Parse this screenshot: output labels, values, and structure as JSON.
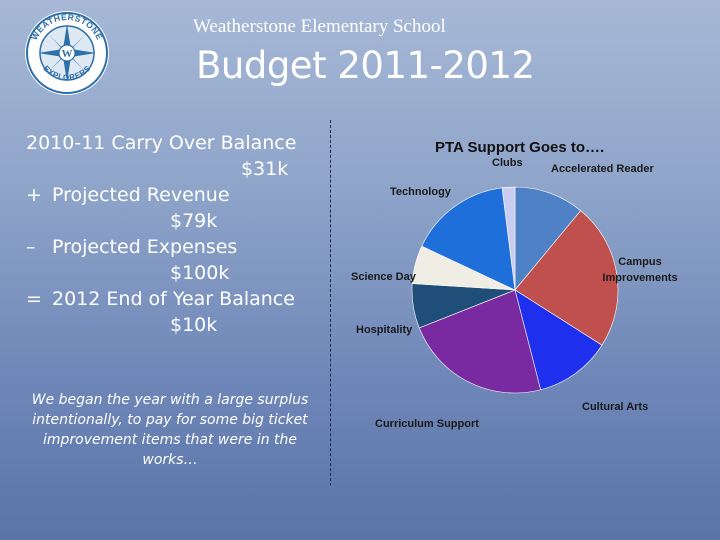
{
  "header": {
    "school_name": "Weatherstone Elementary School",
    "title": "Budget 2011-2012",
    "logo_text_top": "WEATHERSTONE",
    "logo_text_bottom": "EXPLORERS",
    "logo_letter": "W"
  },
  "summary": {
    "lines": [
      {
        "sign": "",
        "label": "2010-11 Carry Over Balance",
        "amount": "$31k"
      },
      {
        "sign": "+",
        "label": "Projected Revenue",
        "amount": "$79k"
      },
      {
        "sign": "–",
        "label": "Projected Expenses",
        "amount": "$100k"
      },
      {
        "sign": "=",
        "label": "2012 End of Year Balance",
        "amount": "$10k"
      }
    ]
  },
  "note": "We began the year with a large surplus intentionally, to pay for some big ticket improvement items that were in the works…",
  "chart_data": {
    "type": "pie",
    "title": "PTA Support Goes to….",
    "slices": [
      {
        "label": "Accelerated Reader",
        "value": 11,
        "color": "#4f81c7"
      },
      {
        "label": "Campus Improvements",
        "value": 23,
        "color": "#c0504d"
      },
      {
        "label": "Cultural Arts",
        "value": 12,
        "color": "#1f2fee"
      },
      {
        "label": "Curriculum Support",
        "value": 23,
        "color": "#7a2aa0"
      },
      {
        "label": "Hospitality",
        "value": 7,
        "color": "#1f4e79"
      },
      {
        "label": "Science Day",
        "value": 6,
        "color": "#f0eee4"
      },
      {
        "label": "Technology",
        "value": 16,
        "color": "#1e6fd9"
      },
      {
        "label": "Clubs",
        "value": 2,
        "color": "#c9cdf2"
      }
    ]
  }
}
